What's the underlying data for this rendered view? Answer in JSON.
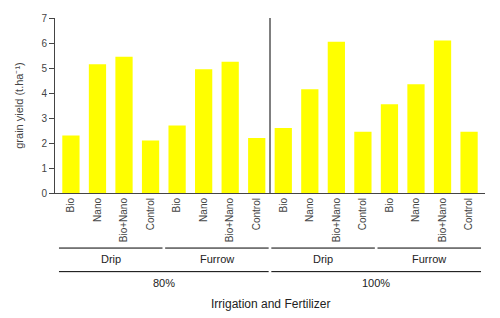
{
  "chart_data": {
    "type": "bar",
    "categories": [
      "Bio",
      "Nano",
      "Bio+Nano",
      "Control",
      "Bio",
      "Nano",
      "Bio+Nano",
      "Control",
      "Bio",
      "Nano",
      "Bio+Nano",
      "Control",
      "Bio",
      "Nano",
      "Bio+Nano",
      "Control"
    ],
    "values": [
      2.3,
      5.15,
      5.45,
      2.1,
      2.7,
      4.95,
      5.25,
      2.2,
      2.6,
      4.15,
      6.05,
      2.45,
      3.55,
      4.35,
      6.1,
      2.45
    ],
    "color": "#FFFF00",
    "xlabel": "Irrigation and Fertilizer",
    "ylabel": "grain yield (t.ha⁻¹)",
    "annotations": [
      [
        "Drip",
        "Furrow",
        "Drip",
        "Furrow"
      ],
      [
        "80%",
        "100%"
      ]
    ],
    "ylim": [
      0.0,
      7.0
    ],
    "yticks": [
      0.0,
      1.0,
      2.0,
      3.0,
      4.0,
      5.0,
      6.0,
      7.0
    ],
    "grid": false
  }
}
